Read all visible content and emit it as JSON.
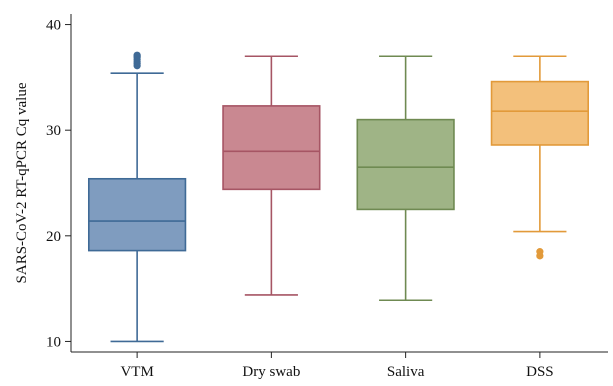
{
  "chart_data": {
    "type": "box",
    "title": "",
    "xlabel": "",
    "ylabel": "SARS-CoV-2 RT-qPCR Cq value",
    "ylim": [
      9,
      41
    ],
    "yticks": [
      10,
      20,
      30,
      40
    ],
    "categories": [
      "VTM",
      "Dry swab",
      "Saliva",
      "DSS"
    ],
    "grid": false,
    "legend": "none",
    "boxes": [
      {
        "category": "VTM",
        "min": 10.0,
        "q1": 18.6,
        "median": 21.4,
        "q3": 25.4,
        "max": 35.4,
        "outliers": [
          36.1,
          36.3,
          36.5,
          36.7,
          36.9,
          37.0,
          37.1
        ],
        "fill": "#7f9cbf",
        "stroke": "#3f6a96"
      },
      {
        "category": "Dry swab",
        "min": 14.4,
        "q1": 24.4,
        "median": 28.0,
        "q3": 32.3,
        "max": 37.0,
        "outliers": [],
        "fill": "#c98891",
        "stroke": "#a65564"
      },
      {
        "category": "Saliva",
        "min": 13.9,
        "q1": 22.5,
        "median": 26.5,
        "q3": 31.0,
        "max": 37.0,
        "outliers": [],
        "fill": "#9fb486",
        "stroke": "#6f8a52"
      },
      {
        "category": "DSS",
        "min": 20.4,
        "q1": 28.6,
        "median": 31.8,
        "q3": 34.6,
        "max": 37.0,
        "outliers": [
          18.1,
          18.5
        ],
        "fill": "#f3c07b",
        "stroke": "#e29a3a"
      }
    ]
  }
}
